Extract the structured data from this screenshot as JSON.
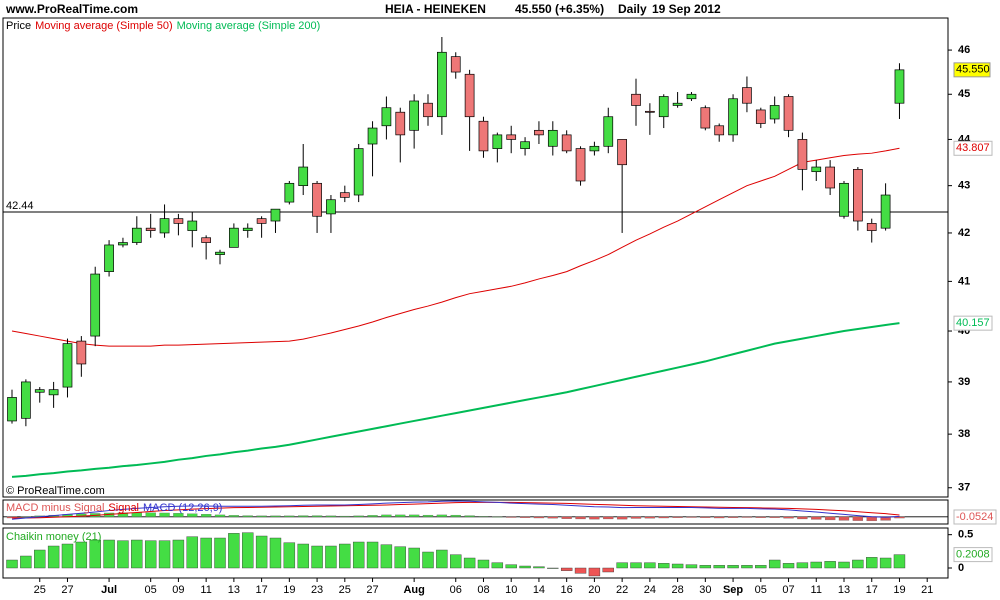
{
  "header": {
    "site": "www.ProRealTime.com",
    "symbol": "HEIA - HEINEKEN",
    "quote": "45.550 (+6.35%)",
    "period": "Daily",
    "date": "19 Sep 2012"
  },
  "chart_data": [
    {
      "type": "candlestick",
      "title": "Price",
      "copyright": "© ProRealTime.com",
      "open": [
        38.25,
        38.3,
        38.8,
        38.75,
        38.9,
        39.8,
        39.9,
        41.2,
        41.75,
        41.8,
        42.1,
        42.0,
        42.3,
        42.05,
        41.9,
        41.55,
        41.7,
        42.05,
        42.3,
        42.25,
        42.65,
        43.0,
        43.05,
        42.4,
        42.85,
        42.8,
        43.9,
        44.3,
        44.6,
        44.2,
        44.8,
        44.5,
        45.85,
        45.45,
        44.4,
        43.8,
        44.1,
        43.8,
        44.2,
        43.85,
        44.1,
        43.8,
        43.75,
        43.85,
        44.0,
        45.0,
        44.62,
        44.5,
        44.75,
        44.9,
        44.7,
        44.3,
        44.1,
        45.15,
        44.65,
        44.45,
        44.95,
        44.0,
        43.3,
        43.4,
        42.35,
        43.35,
        42.2,
        42.1,
        44.8
      ],
      "high": [
        38.85,
        39.05,
        38.9,
        39.0,
        39.85,
        39.9,
        41.3,
        41.85,
        41.9,
        42.35,
        42.4,
        42.6,
        42.4,
        42.45,
        41.95,
        41.65,
        42.2,
        42.2,
        42.35,
        42.5,
        43.1,
        43.9,
        43.1,
        42.8,
        43.0,
        43.9,
        44.4,
        44.95,
        44.7,
        45.0,
        45.0,
        46.3,
        45.95,
        45.55,
        44.5,
        44.15,
        44.3,
        44.05,
        44.4,
        44.4,
        44.2,
        43.85,
        43.95,
        44.7,
        44.0,
        45.35,
        44.8,
        45.0,
        45.05,
        45.05,
        44.75,
        44.35,
        45.0,
        45.4,
        44.7,
        44.95,
        45.0,
        44.15,
        43.55,
        43.55,
        43.1,
        43.4,
        42.3,
        43.05,
        45.7
      ],
      "low": [
        38.2,
        38.15,
        38.6,
        38.5,
        38.7,
        39.1,
        39.7,
        41.1,
        41.7,
        41.75,
        41.9,
        41.9,
        41.95,
        41.7,
        41.45,
        41.35,
        41.7,
        41.9,
        41.9,
        42.0,
        42.6,
        42.8,
        42.0,
        42.0,
        42.65,
        42.65,
        43.2,
        44.0,
        43.5,
        43.8,
        44.3,
        44.1,
        45.35,
        43.75,
        43.6,
        43.5,
        43.7,
        43.65,
        43.9,
        43.65,
        43.7,
        43.0,
        43.65,
        43.7,
        42.0,
        44.3,
        44.1,
        44.25,
        44.7,
        44.85,
        44.2,
        43.95,
        43.95,
        44.6,
        44.25,
        44.35,
        44.05,
        42.9,
        43.1,
        42.8,
        42.3,
        42.05,
        41.8,
        42.05,
        44.45
      ],
      "close": [
        38.7,
        39.0,
        38.85,
        38.85,
        39.75,
        39.35,
        41.15,
        41.75,
        41.8,
        42.1,
        42.05,
        42.3,
        42.2,
        42.25,
        41.8,
        41.6,
        42.1,
        42.1,
        42.2,
        42.5,
        43.05,
        43.4,
        42.35,
        42.7,
        42.75,
        43.8,
        44.25,
        44.7,
        44.1,
        44.85,
        44.5,
        45.95,
        45.5,
        44.5,
        43.75,
        44.1,
        44.0,
        43.95,
        44.1,
        44.2,
        43.75,
        43.1,
        43.85,
        44.5,
        43.45,
        44.75,
        44.6,
        44.95,
        44.8,
        45.0,
        44.25,
        44.1,
        44.9,
        44.8,
        44.35,
        44.75,
        44.2,
        43.35,
        43.4,
        42.95,
        43.05,
        42.25,
        42.05,
        42.8,
        45.55
      ],
      "close_label": "45.550",
      "up_color": "#44dd44",
      "down_color": "#ee7777",
      "series": [
        {
          "name": "Moving average (Simple 50)",
          "color": "#dd0000",
          "values": [
            40.0,
            39.95,
            39.9,
            39.85,
            39.8,
            39.75,
            39.72,
            39.7,
            39.7,
            39.7,
            39.7,
            39.72,
            39.72,
            39.73,
            39.74,
            39.75,
            39.76,
            39.77,
            39.78,
            39.79,
            39.8,
            39.84,
            39.9,
            39.96,
            40.03,
            40.1,
            40.18,
            40.27,
            40.35,
            40.43,
            40.5,
            40.58,
            40.67,
            40.75,
            40.8,
            40.85,
            40.9,
            40.97,
            41.05,
            41.12,
            41.2,
            41.32,
            41.43,
            41.55,
            41.7,
            41.85,
            41.98,
            42.12,
            42.25,
            42.4,
            42.55,
            42.7,
            42.85,
            43.0,
            43.1,
            43.2,
            43.35,
            43.5,
            43.55,
            43.6,
            43.65,
            43.68,
            43.7,
            43.75,
            43.807
          ]
        },
        {
          "name": "Moving average (Simple 200)",
          "color": "#00bb55",
          "values": [
            37.2,
            37.22,
            37.25,
            37.27,
            37.3,
            37.32,
            37.35,
            37.37,
            37.4,
            37.42,
            37.45,
            37.48,
            37.52,
            37.55,
            37.59,
            37.62,
            37.66,
            37.69,
            37.73,
            37.76,
            37.8,
            37.85,
            37.9,
            37.95,
            38.0,
            38.05,
            38.1,
            38.15,
            38.2,
            38.25,
            38.3,
            38.35,
            38.4,
            38.45,
            38.5,
            38.55,
            38.6,
            38.65,
            38.7,
            38.75,
            38.8,
            38.86,
            38.92,
            38.98,
            39.04,
            39.1,
            39.16,
            39.22,
            39.28,
            39.34,
            39.4,
            39.47,
            39.54,
            39.61,
            39.68,
            39.75,
            39.8,
            39.85,
            39.9,
            39.95,
            40.0,
            40.04,
            40.08,
            40.12,
            40.157
          ]
        }
      ],
      "hline": 42.44,
      "ylim": [
        36.83,
        46.74
      ],
      "yticks": [
        37,
        38,
        39,
        40,
        41,
        42,
        43,
        44,
        45,
        46
      ],
      "log_scale": true,
      "xlim": [
        -0.65,
        67.5
      ],
      "xticks": [
        {
          "value": 2,
          "label": "25"
        },
        {
          "value": 4,
          "label": "27"
        },
        {
          "value": 7,
          "label": "Jul"
        },
        {
          "value": 10,
          "label": "05"
        },
        {
          "value": 12,
          "label": "09"
        },
        {
          "value": 14,
          "label": "11"
        },
        {
          "value": 16,
          "label": "13"
        },
        {
          "value": 18,
          "label": "17"
        },
        {
          "value": 20,
          "label": "19"
        },
        {
          "value": 22,
          "label": "23"
        },
        {
          "value": 24,
          "label": "25"
        },
        {
          "value": 26,
          "label": "27"
        },
        {
          "value": 29,
          "label": "Aug"
        },
        {
          "value": 32,
          "label": "06"
        },
        {
          "value": 34,
          "label": "08"
        },
        {
          "value": 36,
          "label": "10"
        },
        {
          "value": 38,
          "label": "14"
        },
        {
          "value": 40,
          "label": "16"
        },
        {
          "value": 42,
          "label": "20"
        },
        {
          "value": 44,
          "label": "22"
        },
        {
          "value": 46,
          "label": "24"
        },
        {
          "value": 48,
          "label": "28"
        },
        {
          "value": 50,
          "label": "30"
        },
        {
          "value": 52,
          "label": "Sep"
        },
        {
          "value": 54,
          "label": "05"
        },
        {
          "value": 56,
          "label": "07"
        },
        {
          "value": 58,
          "label": "11"
        },
        {
          "value": 60,
          "label": "13"
        },
        {
          "value": 62,
          "label": "17"
        },
        {
          "value": 64,
          "label": "19"
        },
        {
          "value": 66,
          "label": "21"
        }
      ]
    },
    {
      "type": "macd",
      "ylim": [
        -0.3,
        0.7
      ],
      "positive_color": "#44dd44",
      "series": [
        {
          "name": "MACD minus Signal",
          "color": "#dd5555",
          "values": [
            -0.05,
            0,
            0.04,
            0.07,
            0.1,
            0.12,
            0.14,
            0.16,
            0.17,
            0.17,
            0.17,
            0.16,
            0.15,
            0.13,
            0.11,
            0.08,
            0.06,
            0.05,
            0.04,
            0.04,
            0.04,
            0.05,
            0.05,
            0.04,
            0.03,
            0.04,
            0.06,
            0.08,
            0.08,
            0.08,
            0.07,
            0.08,
            0.07,
            0.05,
            0.02,
            0,
            -0.03,
            -0.04,
            -0.05,
            -0.06,
            -0.08,
            -0.09,
            -0.1,
            -0.09,
            -0.1,
            -0.07,
            -0.06,
            -0.05,
            -0.04,
            -0.03,
            -0.04,
            -0.05,
            -0.04,
            -0.03,
            -0.04,
            -0.04,
            -0.06,
            -0.09,
            -0.11,
            -0.13,
            -0.15,
            -0.16,
            -0.17,
            -0.15,
            -0.0524
          ]
        },
        {
          "name": "Signal",
          "color": "#dd0000",
          "values": [
            -0.05,
            -0.05,
            -0.04,
            -0.02,
            0.0,
            0.03,
            0.06,
            0.1,
            0.14,
            0.18,
            0.22,
            0.26,
            0.29,
            0.32,
            0.34,
            0.36,
            0.38,
            0.39,
            0.4,
            0.41,
            0.42,
            0.43,
            0.44,
            0.45,
            0.46,
            0.47,
            0.48,
            0.49,
            0.51,
            0.53,
            0.55,
            0.57,
            0.59,
            0.6,
            0.6,
            0.6,
            0.6,
            0.59,
            0.58,
            0.57,
            0.56,
            0.54,
            0.52,
            0.5,
            0.48,
            0.46,
            0.45,
            0.44,
            0.43,
            0.42,
            0.41,
            0.4,
            0.39,
            0.38,
            0.37,
            0.36,
            0.35,
            0.33,
            0.31,
            0.28,
            0.25,
            0.21,
            0.17,
            0.13,
            0.0724
          ]
        },
        {
          "name": "MACD (12,26,9)",
          "color": "#3333cc",
          "values": [
            -0.1,
            -0.05,
            0.0,
            0.05,
            0.1,
            0.15,
            0.2,
            0.26,
            0.31,
            0.35,
            0.39,
            0.42,
            0.44,
            0.45,
            0.45,
            0.44,
            0.44,
            0.44,
            0.44,
            0.45,
            0.46,
            0.48,
            0.49,
            0.49,
            0.49,
            0.51,
            0.54,
            0.57,
            0.59,
            0.61,
            0.62,
            0.65,
            0.66,
            0.65,
            0.62,
            0.6,
            0.57,
            0.55,
            0.53,
            0.51,
            0.48,
            0.45,
            0.42,
            0.41,
            0.38,
            0.39,
            0.39,
            0.39,
            0.39,
            0.39,
            0.37,
            0.35,
            0.35,
            0.35,
            0.33,
            0.32,
            0.29,
            0.24,
            0.2,
            0.15,
            0.1,
            0.05,
            0.0,
            -0.02,
            0.02
          ]
        }
      ]
    },
    {
      "type": "bar",
      "title": "Chaikin money (21)",
      "color": "#44dd44",
      "negative_color": "#ee5555",
      "ylim": [
        -0.15,
        0.6
      ],
      "yticks": [
        0.5,
        0
      ],
      "values": [
        0.12,
        0.18,
        0.27,
        0.33,
        0.36,
        0.39,
        0.42,
        0.42,
        0.41,
        0.42,
        0.41,
        0.41,
        0.42,
        0.47,
        0.45,
        0.45,
        0.52,
        0.53,
        0.48,
        0.45,
        0.38,
        0.36,
        0.33,
        0.33,
        0.36,
        0.39,
        0.39,
        0.35,
        0.32,
        0.3,
        0.24,
        0.27,
        0.2,
        0.15,
        0.12,
        0.08,
        0.05,
        0.03,
        0.02,
        0.0,
        -0.04,
        -0.08,
        -0.12,
        -0.06,
        0.08,
        0.08,
        0.08,
        0.07,
        0.06,
        0.05,
        0.04,
        0.04,
        0.04,
        0.04,
        0.04,
        0.12,
        0.07,
        0.08,
        0.09,
        0.1,
        0.09,
        0.12,
        0.16,
        0.15,
        0.2008
      ]
    }
  ]
}
